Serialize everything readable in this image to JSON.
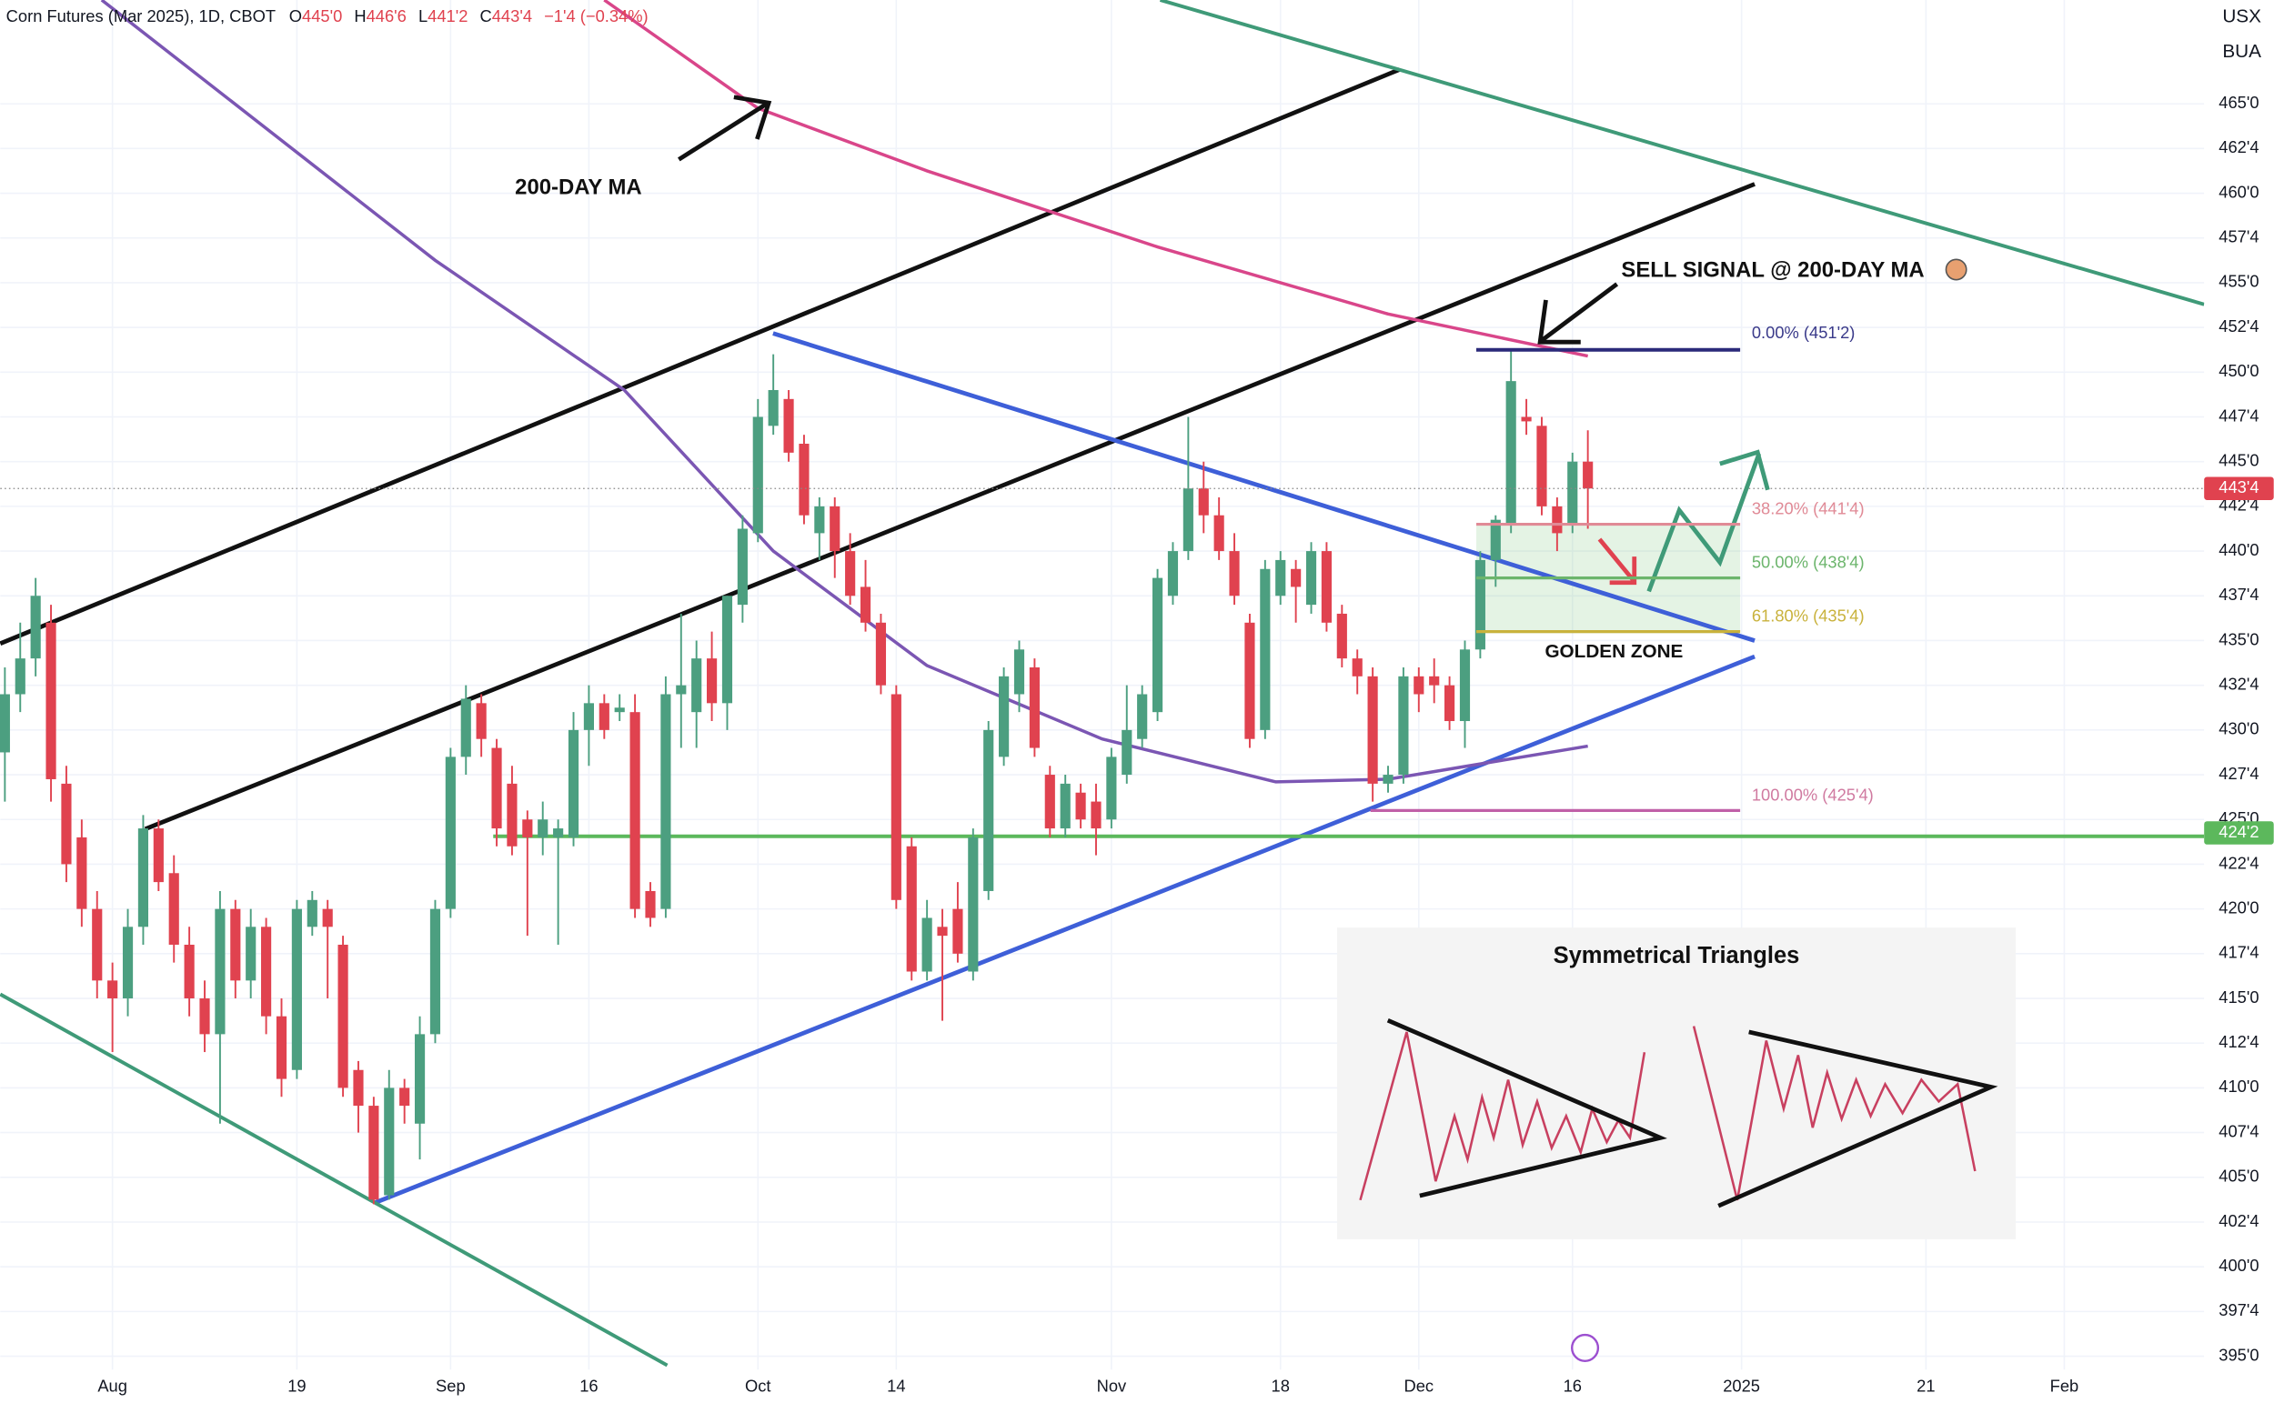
{
  "header": {
    "title": "Corn Futures (Mar 2025), 1D, CBOT",
    "ohlc": [
      {
        "key": "O",
        "value": "445'0"
      },
      {
        "key": "H",
        "value": "446'6"
      },
      {
        "key": "L",
        "value": "441'2"
      },
      {
        "key": "C",
        "value": "443'4"
      }
    ],
    "change": "−1'4 (−0.34%)",
    "currency": "USX",
    "unit": "BUA"
  },
  "chart_data": {
    "type": "candlestick",
    "up_color": "#4c9f80",
    "down_color": "#e0424f",
    "grid": true,
    "xlim": [
      -0.3,
      143.1
    ],
    "ylim": [
      394.25,
      470.8
    ],
    "xticks": [
      {
        "value": 7,
        "label": "Aug"
      },
      {
        "value": 19,
        "label": "19"
      },
      {
        "value": 29,
        "label": "Sep"
      },
      {
        "value": 38,
        "label": "16"
      },
      {
        "value": 49,
        "label": "Oct"
      },
      {
        "value": 58,
        "label": "14"
      },
      {
        "value": 72,
        "label": "Nov"
      },
      {
        "value": 83,
        "label": "18"
      },
      {
        "value": 92,
        "label": "Dec"
      },
      {
        "value": 102,
        "label": "16"
      },
      {
        "value": 113,
        "label": "2025"
      },
      {
        "value": 125,
        "label": "21"
      },
      {
        "value": 134,
        "label": "Feb"
      }
    ],
    "yticks": [
      {
        "value": 465,
        "label": "465'0"
      },
      {
        "value": 462.5,
        "label": "462'4"
      },
      {
        "value": 460,
        "label": "460'0"
      },
      {
        "value": 457.5,
        "label": "457'4"
      },
      {
        "value": 455,
        "label": "455'0"
      },
      {
        "value": 452.5,
        "label": "452'4"
      },
      {
        "value": 450,
        "label": "450'0"
      },
      {
        "value": 447.5,
        "label": "447'4"
      },
      {
        "value": 445,
        "label": "445'0"
      },
      {
        "value": 442.5,
        "label": "442'4"
      },
      {
        "value": 440,
        "label": "440'0"
      },
      {
        "value": 437.5,
        "label": "437'4"
      },
      {
        "value": 435,
        "label": "435'0"
      },
      {
        "value": 432.5,
        "label": "432'4"
      },
      {
        "value": 430,
        "label": "430'0"
      },
      {
        "value": 427.5,
        "label": "427'4"
      },
      {
        "value": 425,
        "label": "425'0"
      },
      {
        "value": 422.5,
        "label": "422'4"
      },
      {
        "value": 420,
        "label": "420'0"
      },
      {
        "value": 417.5,
        "label": "417'4"
      },
      {
        "value": 415,
        "label": "415'0"
      },
      {
        "value": 412.5,
        "label": "412'4"
      },
      {
        "value": 410,
        "label": "410'0"
      },
      {
        "value": 407.5,
        "label": "407'4"
      },
      {
        "value": 405,
        "label": "405'0"
      },
      {
        "value": 402.5,
        "label": "402'4"
      },
      {
        "value": 400,
        "label": "400'0"
      },
      {
        "value": 397.5,
        "label": "397'4"
      },
      {
        "value": 395,
        "label": "395'0"
      }
    ],
    "candles": {
      "open": [
        428.75,
        432,
        434,
        436,
        427,
        424,
        420,
        416,
        415,
        419,
        424.5,
        422,
        418,
        415,
        413,
        420,
        416,
        419,
        414,
        411,
        419,
        420,
        418,
        411,
        409,
        404,
        410,
        408,
        413,
        420,
        428.5,
        431.5,
        429,
        427,
        425,
        424,
        424,
        424,
        430,
        431.5,
        431,
        431,
        421,
        420,
        432,
        431,
        434,
        431.5,
        437,
        441,
        447,
        448.5,
        446,
        441,
        442.5,
        440,
        438,
        436,
        432,
        423.5,
        416.5,
        419,
        420,
        416.5,
        421,
        428.5,
        432,
        433.5,
        427.5,
        424.5,
        426.5,
        426,
        425,
        427.5,
        429.5,
        431,
        437.5,
        440,
        443.5,
        442,
        440,
        436,
        430,
        437.5,
        439,
        437,
        440,
        436.5,
        434,
        433,
        427,
        427.5,
        433,
        433,
        432.5,
        430.5,
        434.5,
        439.5,
        441.5,
        447.5,
        447,
        442.5,
        441.5,
        445
      ],
      "high": [
        433.5,
        436,
        438.5,
        437,
        428,
        425,
        421,
        417,
        420,
        425.25,
        425,
        423,
        419,
        416,
        421,
        420.5,
        420,
        419.5,
        415,
        420.5,
        421,
        420.5,
        418.5,
        411.5,
        409.5,
        411,
        410.5,
        414,
        420.5,
        429,
        432.5,
        432,
        429.5,
        428,
        425.5,
        426,
        425,
        431,
        432.5,
        432,
        432,
        432,
        421.5,
        433,
        436.5,
        435,
        435.5,
        437.5,
        442,
        448.5,
        451,
        449,
        446.5,
        443,
        443,
        441,
        439.5,
        436.5,
        432.5,
        424,
        420.5,
        420,
        421.5,
        424.5,
        430.5,
        433.5,
        435,
        434,
        428,
        427.5,
        427,
        427,
        429,
        432.5,
        432.5,
        439,
        440.5,
        447.5,
        445,
        443,
        441,
        436.5,
        439.5,
        440,
        439.5,
        440.5,
        440.5,
        437,
        434.5,
        433.5,
        428,
        433.5,
        433.5,
        434,
        433,
        435,
        440,
        442,
        451.25,
        448.5,
        447.5,
        443,
        445.5,
        446.75
      ],
      "low": [
        426,
        431,
        433,
        426,
        421.5,
        419,
        415,
        412,
        414,
        418,
        421,
        417,
        414,
        412,
        408,
        415,
        415,
        413,
        409.5,
        410.5,
        418.5,
        415,
        409.5,
        407.5,
        403.5,
        403.75,
        408,
        406,
        412.5,
        419.5,
        427.5,
        428.5,
        423.5,
        423,
        418.5,
        423,
        418,
        423.5,
        428,
        429.5,
        430.5,
        419.5,
        419,
        419.5,
        429,
        429,
        430.5,
        430,
        436,
        440.5,
        446.5,
        445,
        441.5,
        439.5,
        438.5,
        437,
        435.5,
        432,
        420,
        416,
        416,
        413.75,
        417,
        416,
        420.5,
        428,
        431,
        428.5,
        424,
        424,
        424.5,
        423,
        424.5,
        427,
        429,
        430.5,
        437,
        439.5,
        441,
        439.5,
        437,
        429,
        429.5,
        437,
        436,
        436.5,
        435.5,
        433.5,
        432,
        426,
        426.5,
        427,
        431,
        431.5,
        430,
        429,
        434,
        438,
        441,
        446.5,
        442,
        440,
        441,
        441.25
      ],
      "close": [
        432,
        434,
        437.5,
        427.25,
        422.5,
        420,
        416,
        415,
        419,
        424.5,
        421.5,
        418,
        415,
        413,
        420,
        416,
        419,
        414,
        410.5,
        420,
        420.5,
        419,
        410,
        409,
        403.75,
        410,
        409,
        413,
        420,
        428.5,
        431.75,
        429.5,
        424.5,
        423.5,
        424,
        425,
        424.5,
        430,
        431.5,
        430,
        431.25,
        420,
        419.5,
        432,
        432.5,
        434,
        431.5,
        437.5,
        441.25,
        447.5,
        449,
        445.5,
        442,
        442.5,
        440,
        437.5,
        436,
        432.5,
        420.5,
        416.5,
        419.5,
        418.5,
        417.5,
        424,
        430,
        433,
        434.5,
        429,
        424.5,
        427,
        425,
        424.5,
        428.5,
        430,
        432,
        438.5,
        440,
        443.5,
        442,
        440,
        437.5,
        429.5,
        439,
        439.5,
        438,
        440,
        436,
        434,
        433,
        427,
        427.5,
        433,
        432,
        432.5,
        430.5,
        434.5,
        439.5,
        441.75,
        449.5,
        447.25,
        442.5,
        441,
        445,
        443.5
      ]
    },
    "lines": [
      {
        "color": "#d9468a",
        "x": [
          39,
          49,
          60,
          75,
          90,
          103
        ],
        "values": [
          470.8,
          464.75,
          461.25,
          457,
          453.25,
          450.9
        ]
      },
      {
        "color": "#7b56b3",
        "x": [
          6.3,
          28,
          40.3,
          50,
          60,
          71.4,
          82.7,
          90,
          103
        ],
        "values": [
          470.8,
          456.25,
          449,
          440,
          433.6,
          429.5,
          427.1,
          427.25,
          429.1
        ]
      }
    ],
    "fib_levels": [
      {
        "value": 451.25,
        "label": "0.00% (451'2)",
        "color": "#2b2a7a",
        "text_color": "#3a3a8a"
      },
      {
        "value": 441.5,
        "label": "38.20% (441'4)",
        "color": "#e08a96",
        "text_color": "#e08a96"
      },
      {
        "value": 438.5,
        "label": "50.00% (438'4)",
        "color": "#6cb56c",
        "text_color": "#6cb56c"
      },
      {
        "value": 435.5,
        "label": "61.80% (435'4)",
        "color": "#c9b23c",
        "text_color": "#c9b23c"
      },
      {
        "value": 425.5,
        "label": "100.00% (425'4)",
        "color": "#c060a8",
        "text_color": "#d07aa0"
      }
    ],
    "price_lines": [
      {
        "value": 443.5,
        "label": "443'4",
        "color": "#e0424f",
        "dash": true
      },
      {
        "value": 424.25,
        "label": "424'2",
        "color": "#5cb85c",
        "dash": false
      }
    ],
    "annotations": [
      "200-DAY MA",
      "SELL SIGNAL @ 200-DAY MA",
      "GOLDEN ZONE",
      "Symmetrical Triangles"
    ]
  }
}
